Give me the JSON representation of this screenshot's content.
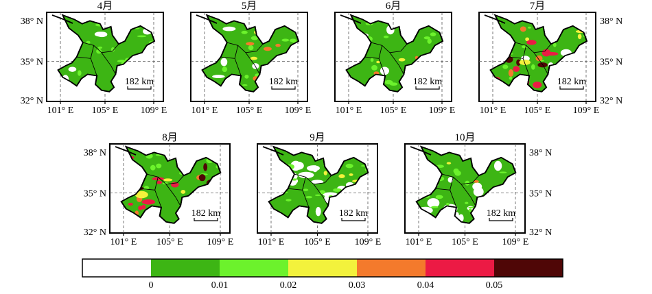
{
  "map_panels": [
    {
      "id": "apr",
      "title": "4月",
      "heat": 0.05,
      "blank": 0.18,
      "scale": "182 km"
    },
    {
      "id": "may",
      "title": "5月",
      "heat": 0.3,
      "blank": 0.1,
      "scale": "182 km"
    },
    {
      "id": "jun",
      "title": "6月",
      "heat": 0.12,
      "blank": 0.16,
      "scale": "182 km"
    },
    {
      "id": "jul",
      "title": "7月",
      "heat": 0.75,
      "blank": 0.1,
      "scale": "182 km"
    },
    {
      "id": "aug",
      "title": "8月",
      "heat": 0.85,
      "blank": 0.05,
      "scale": "182 km"
    },
    {
      "id": "sep",
      "title": "9月",
      "heat": 0.25,
      "blank": 0.45,
      "scale": "182 km"
    },
    {
      "id": "oct",
      "title": "10月",
      "heat": 0.1,
      "blank": 0.5,
      "scale": "182 km"
    }
  ],
  "axes": {
    "lat_ticks": [
      "38° N",
      "35° N",
      "32° N"
    ],
    "lon_ticks": [
      "101° E",
      "105° E",
      "109° E"
    ]
  },
  "legend": {
    "tick_labels": [
      "0",
      "0.01",
      "0.02",
      "0.03",
      "0.04",
      "0.05"
    ],
    "colors": [
      "#ffffff",
      "#3db514",
      "#6cf22c",
      "#f3f23c",
      "#f47a2c",
      "#ec1a44",
      "#4f0606"
    ]
  }
}
